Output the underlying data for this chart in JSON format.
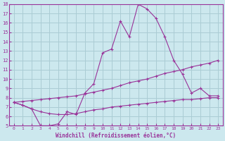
{
  "xlabel": "Windchill (Refroidissement éolien,°C)",
  "bg_color": "#cce8ee",
  "grid_color": "#aaccd4",
  "line_color": "#993399",
  "xlim": [
    -0.5,
    23.5
  ],
  "ylim": [
    5,
    18
  ],
  "xticks": [
    0,
    1,
    2,
    3,
    4,
    5,
    6,
    7,
    8,
    9,
    10,
    11,
    12,
    13,
    14,
    15,
    16,
    17,
    18,
    19,
    20,
    21,
    22,
    23
  ],
  "yticks": [
    5,
    6,
    7,
    8,
    9,
    10,
    11,
    12,
    13,
    14,
    15,
    16,
    17,
    18
  ],
  "line1_x": [
    0,
    1,
    2,
    3,
    4,
    5,
    6,
    7,
    8,
    9,
    10,
    11,
    12,
    13,
    14,
    15,
    16,
    17,
    18,
    19,
    20,
    21,
    22,
    23
  ],
  "line1_y": [
    7.5,
    7.2,
    6.8,
    5.0,
    5.0,
    5.2,
    6.5,
    6.2,
    8.5,
    9.5,
    12.8,
    13.2,
    16.2,
    14.5,
    18.0,
    17.5,
    16.5,
    14.5,
    12.0,
    10.5,
    8.5,
    9.0,
    8.2,
    8.2
  ],
  "line2_x": [
    0,
    1,
    2,
    3,
    4,
    5,
    6,
    7,
    8,
    9,
    10,
    11,
    12,
    13,
    14,
    15,
    16,
    17,
    18,
    19,
    20,
    21,
    22,
    23
  ],
  "line2_y": [
    7.5,
    7.6,
    7.7,
    7.8,
    7.9,
    8.0,
    8.1,
    8.2,
    8.4,
    8.6,
    8.8,
    9.0,
    9.3,
    9.6,
    9.8,
    10.0,
    10.3,
    10.6,
    10.8,
    11.0,
    11.3,
    11.5,
    11.7,
    12.0
  ],
  "line3_x": [
    0,
    1,
    2,
    3,
    4,
    5,
    6,
    7,
    8,
    9,
    10,
    11,
    12,
    13,
    14,
    15,
    16,
    17,
    18,
    19,
    20,
    21,
    22,
    23
  ],
  "line3_y": [
    7.5,
    7.2,
    6.8,
    6.5,
    6.3,
    6.2,
    6.2,
    6.3,
    6.5,
    6.7,
    6.8,
    7.0,
    7.1,
    7.2,
    7.3,
    7.4,
    7.5,
    7.6,
    7.7,
    7.8,
    7.8,
    7.9,
    8.0,
    8.0
  ]
}
